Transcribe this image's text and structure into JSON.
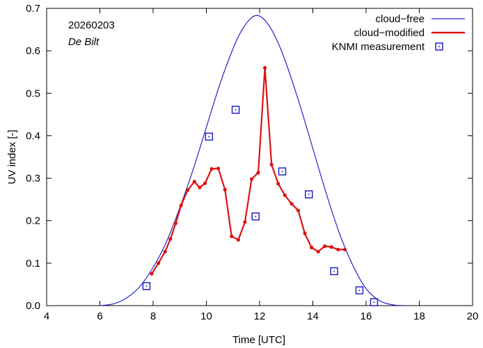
{
  "chart_data": {
    "type": "line",
    "title": "",
    "xlabel": "Time  [UTC]",
    "ylabel": "UV index  [-]",
    "xlim": [
      4,
      20
    ],
    "ylim": [
      0,
      0.7
    ],
    "xticks": [
      4,
      6,
      8,
      10,
      12,
      14,
      16,
      18,
      20
    ],
    "yticks": [
      0.0,
      0.1,
      0.2,
      0.3,
      0.4,
      0.5,
      0.6,
      0.7
    ],
    "xtick_labels": [
      "4",
      "6",
      "8",
      "10",
      "12",
      "14",
      "16",
      "18",
      "20"
    ],
    "ytick_labels": [
      "0.0",
      "0.1",
      "0.2",
      "0.3",
      "0.4",
      "0.5",
      "0.6",
      "0.7"
    ],
    "grid": false,
    "legend_position": "top-right",
    "annotations": {
      "date": "20260203",
      "station": "De Bilt"
    },
    "series": [
      {
        "name": "cloud−free",
        "style": "line",
        "color": "#2222cc",
        "x": [
          6.0,
          6.5,
          7.0,
          7.5,
          8.0,
          8.5,
          9.0,
          9.5,
          10.0,
          10.5,
          11.0,
          11.3,
          11.6,
          11.85,
          12.1,
          12.4,
          12.7,
          13.0,
          13.5,
          14.0,
          14.5,
          15.0,
          15.5,
          16.0,
          16.5,
          17.0,
          17.5
        ],
        "y": [
          0.0,
          0.004,
          0.018,
          0.045,
          0.09,
          0.15,
          0.23,
          0.32,
          0.42,
          0.52,
          0.605,
          0.645,
          0.672,
          0.683,
          0.678,
          0.655,
          0.618,
          0.57,
          0.475,
          0.37,
          0.265,
          0.17,
          0.095,
          0.04,
          0.012,
          0.002,
          0.0
        ]
      },
      {
        "name": "cloud−modified",
        "style": "line-points",
        "color": "#dd1111",
        "x": [
          7.95,
          8.2,
          8.45,
          8.65,
          8.85,
          9.05,
          9.3,
          9.55,
          9.75,
          9.95,
          10.2,
          10.45,
          10.7,
          10.95,
          11.2,
          11.45,
          11.7,
          11.95,
          12.2,
          12.45,
          12.7,
          12.95,
          13.2,
          13.45,
          13.7,
          13.95,
          14.2,
          14.45,
          14.7,
          14.95,
          15.2
        ],
        "y": [
          0.075,
          0.1,
          0.127,
          0.157,
          0.194,
          0.236,
          0.272,
          0.292,
          0.278,
          0.288,
          0.322,
          0.323,
          0.273,
          0.163,
          0.155,
          0.197,
          0.298,
          0.313,
          0.56,
          0.332,
          0.287,
          0.26,
          0.24,
          0.224,
          0.17,
          0.137,
          0.127,
          0.14,
          0.138,
          0.132,
          0.132
        ]
      },
      {
        "name": "KNMI measurement",
        "style": "points",
        "color": "#2222cc",
        "x": [
          7.75,
          10.1,
          11.1,
          11.85,
          12.85,
          13.85,
          14.8,
          15.75,
          16.3
        ],
        "y": [
          0.046,
          0.398,
          0.461,
          0.21,
          0.316,
          0.262,
          0.081,
          0.036,
          0.008
        ]
      }
    ]
  }
}
